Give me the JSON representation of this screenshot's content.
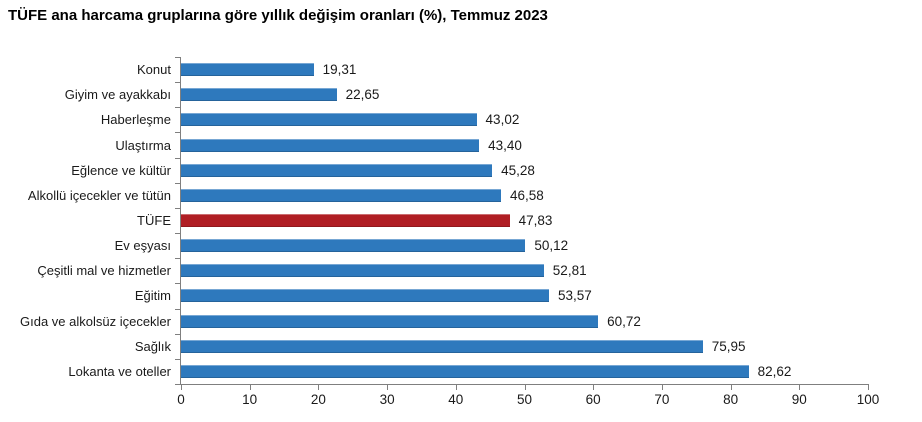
{
  "title": "TÜFE ana harcama gruplarına göre yıllık değişim oranları (%), Temmuz 2023",
  "chart_data": {
    "type": "bar",
    "orientation": "horizontal",
    "title": "TÜFE ana harcama gruplarına göre yıllık değişim oranları (%), Temmuz 2023",
    "categories": [
      "Konut",
      "Giyim ve ayakkabı",
      "Haberleşme",
      "Ulaştırma",
      "Eğlence ve kültür",
      "Alkollü içecekler ve tütün",
      "TÜFE",
      "Ev eşyası",
      "Çeşitli mal ve hizmetler",
      "Eğitim",
      "Gıda ve alkolsüz içecekler",
      "Sağlık",
      "Lokanta ve oteller"
    ],
    "values": [
      19.31,
      22.65,
      43.02,
      43.4,
      45.28,
      46.58,
      47.83,
      50.12,
      52.81,
      53.57,
      60.72,
      75.95,
      82.62
    ],
    "value_labels": [
      "19,31",
      "22,65",
      "43,02",
      "43,40",
      "45,28",
      "46,58",
      "47,83",
      "50,12",
      "52,81",
      "53,57",
      "60,72",
      "75,95",
      "82,62"
    ],
    "highlight_index": 6,
    "xlabel": "",
    "ylabel": "",
    "xlim": [
      0,
      100
    ],
    "xticks": [
      0,
      10,
      20,
      30,
      40,
      50,
      60,
      70,
      80,
      90,
      100
    ],
    "grid": false,
    "legend": false,
    "colors": {
      "bar": "#2e79bd",
      "highlight": "#b01e24",
      "axis": "#7f7f7f",
      "text": "#1a1a1a"
    }
  }
}
